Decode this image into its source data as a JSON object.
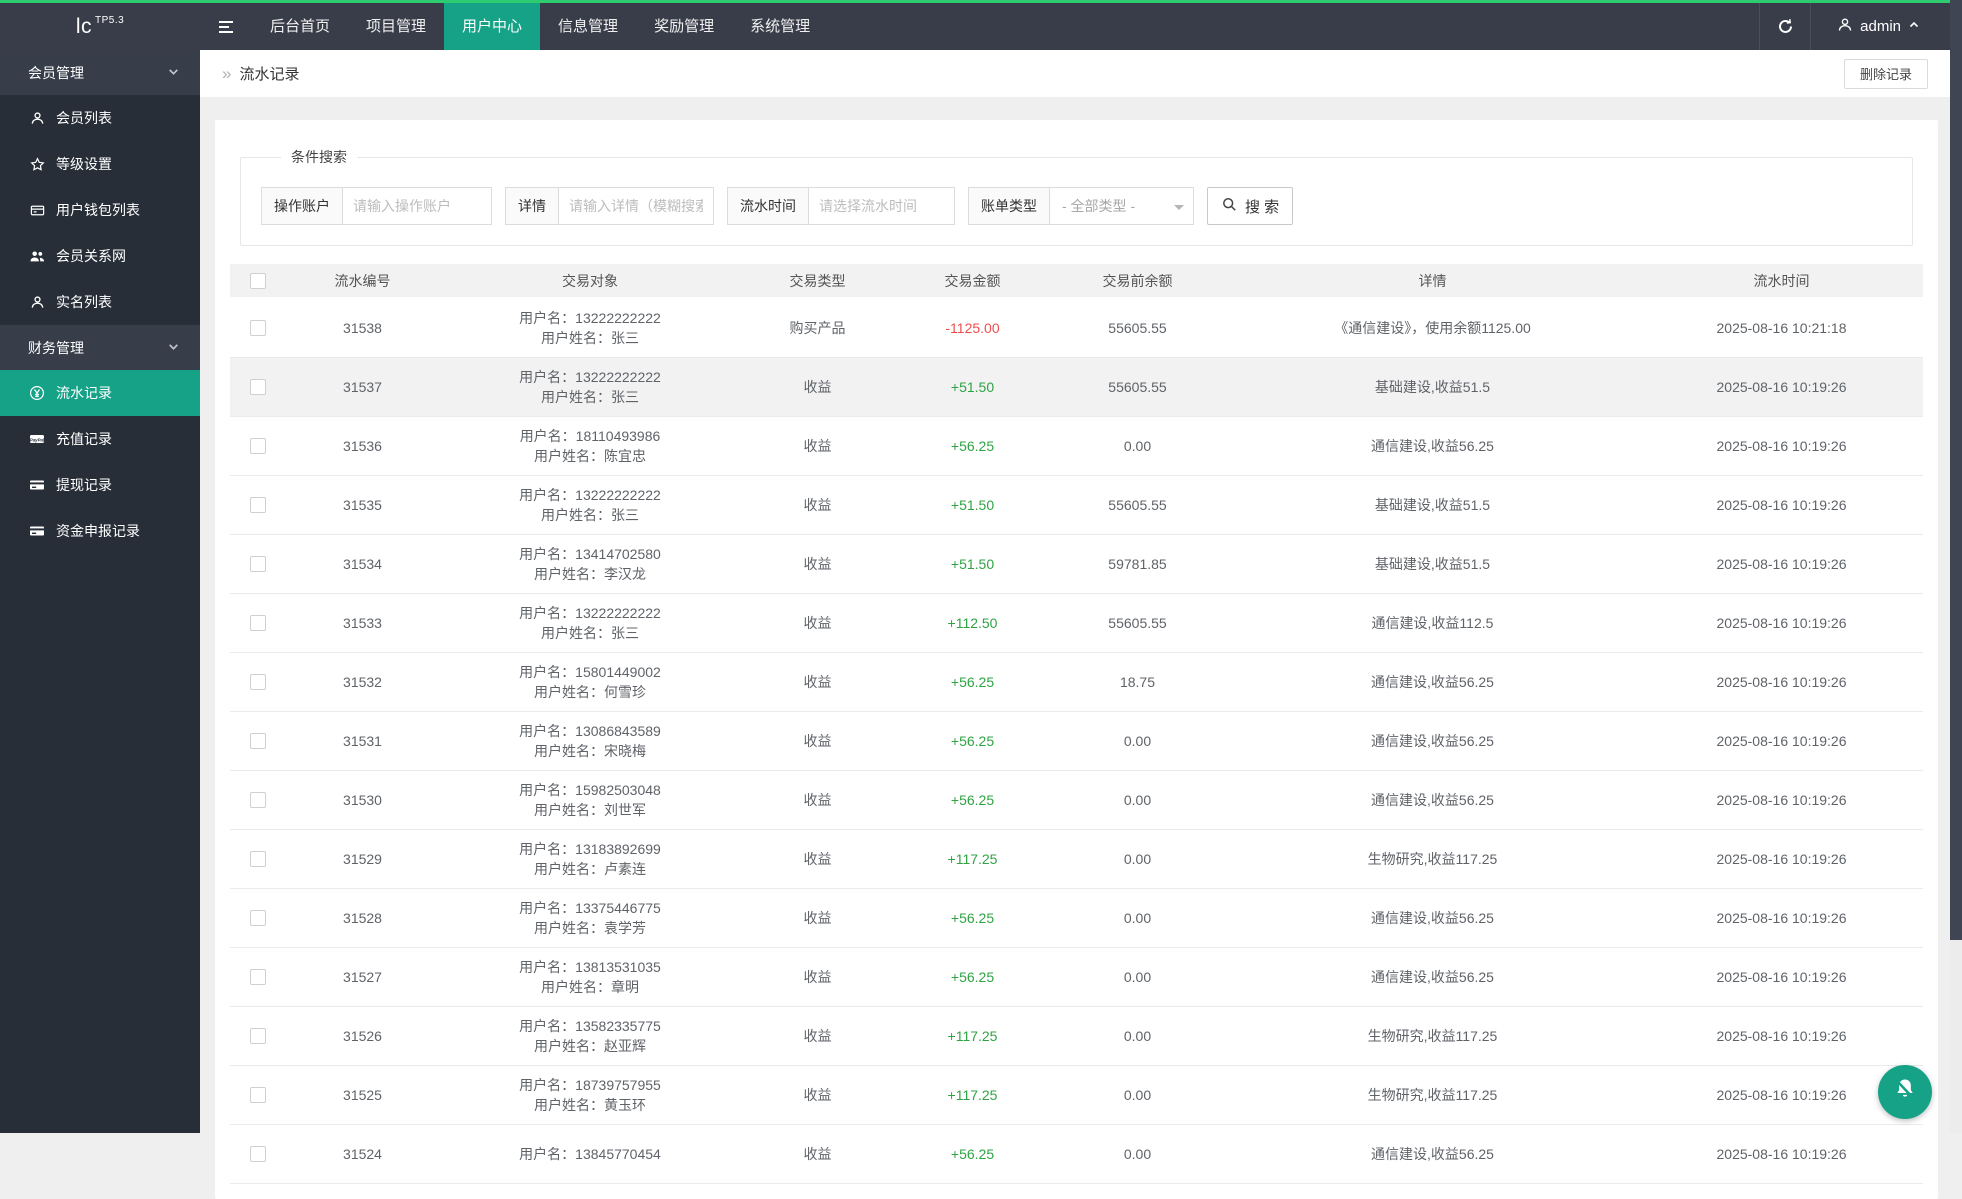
{
  "colors": {
    "accent": "#15A287",
    "top_line": "#2ECC71",
    "amount_positive": "#2FA344",
    "amount_negative": "#EE4E4E"
  },
  "topbar": {
    "logo_main": "lc",
    "logo_sup": "TP5.3",
    "tabs": [
      {
        "label": "后台首页",
        "active": false
      },
      {
        "label": "项目管理",
        "active": false
      },
      {
        "label": "用户中心",
        "active": true
      },
      {
        "label": "信息管理",
        "active": false
      },
      {
        "label": "奖励管理",
        "active": false
      },
      {
        "label": "系统管理",
        "active": false
      }
    ],
    "user": "admin"
  },
  "sidebar": {
    "sections": [
      {
        "label": "会员管理",
        "items": [
          {
            "label": "会员列表",
            "icon": "user-icon",
            "active": false
          },
          {
            "label": "等级设置",
            "icon": "star-icon",
            "active": false
          },
          {
            "label": "用户钱包列表",
            "icon": "wallet-icon",
            "active": false
          },
          {
            "label": "会员关系网",
            "icon": "users-icon",
            "active": false
          },
          {
            "label": "实名列表",
            "icon": "user-icon",
            "active": false
          }
        ]
      },
      {
        "label": "财务管理",
        "items": [
          {
            "label": "流水记录",
            "icon": "yen-circle-icon",
            "active": true
          },
          {
            "label": "充值记录",
            "icon": "paypal-icon",
            "active": false
          },
          {
            "label": "提现记录",
            "icon": "card-icon",
            "active": false
          },
          {
            "label": "资金申报记录",
            "icon": "card-icon",
            "active": false
          }
        ]
      }
    ]
  },
  "breadcrumb": {
    "title": "流水记录",
    "delete_button": "删除记录"
  },
  "search": {
    "legend": "条件搜索",
    "fields": [
      {
        "name": "operator-account",
        "type": "input",
        "label": "操作账户",
        "placeholder": "请输入操作账户"
      },
      {
        "name": "detail",
        "type": "input",
        "label": "详情",
        "placeholder": "请输入详情（模糊搜索）"
      },
      {
        "name": "flow-time",
        "type": "input",
        "label": "流水时间",
        "placeholder": "请选择流水时间"
      },
      {
        "name": "bill-type",
        "type": "select",
        "label": "账单类型",
        "value": "- 全部类型 -"
      }
    ],
    "button_label": "搜 索"
  },
  "table": {
    "headers": [
      "流水编号",
      "交易对象",
      "交易类型",
      "交易金额",
      "交易前余额",
      "详情",
      "流水时间"
    ],
    "rows": [
      {
        "id": "31538",
        "user_line1": "用户名：13222222222",
        "user_line2": "用户姓名：张三",
        "type": "购买产品",
        "amount": "-1125.00",
        "direction": "neg",
        "balance": "55605.55",
        "detail": "《通信建设》，使用余额1125.00",
        "time": "2025-08-16 10:21:18",
        "highlighted": false
      },
      {
        "id": "31537",
        "user_line1": "用户名：13222222222",
        "user_line2": "用户姓名：张三",
        "type": "收益",
        "amount": "+51.50",
        "direction": "pos",
        "balance": "55605.55",
        "detail": "基础建设,收益51.5",
        "time": "2025-08-16 10:19:26",
        "highlighted": true
      },
      {
        "id": "31536",
        "user_line1": "用户名：18110493986",
        "user_line2": "用户姓名：陈宜忠",
        "type": "收益",
        "amount": "+56.25",
        "direction": "pos",
        "balance": "0.00",
        "detail": "通信建设,收益56.25",
        "time": "2025-08-16 10:19:26",
        "highlighted": false
      },
      {
        "id": "31535",
        "user_line1": "用户名：13222222222",
        "user_line2": "用户姓名：张三",
        "type": "收益",
        "amount": "+51.50",
        "direction": "pos",
        "balance": "55605.55",
        "detail": "基础建设,收益51.5",
        "time": "2025-08-16 10:19:26",
        "highlighted": false
      },
      {
        "id": "31534",
        "user_line1": "用户名：13414702580",
        "user_line2": "用户姓名：李汉龙",
        "type": "收益",
        "amount": "+51.50",
        "direction": "pos",
        "balance": "59781.85",
        "detail": "基础建设,收益51.5",
        "time": "2025-08-16 10:19:26",
        "highlighted": false
      },
      {
        "id": "31533",
        "user_line1": "用户名：13222222222",
        "user_line2": "用户姓名：张三",
        "type": "收益",
        "amount": "+112.50",
        "direction": "pos",
        "balance": "55605.55",
        "detail": "通信建设,收益112.5",
        "time": "2025-08-16 10:19:26",
        "highlighted": false
      },
      {
        "id": "31532",
        "user_line1": "用户名：15801449002",
        "user_line2": "用户姓名：何雪珍",
        "type": "收益",
        "amount": "+56.25",
        "direction": "pos",
        "balance": "18.75",
        "detail": "通信建设,收益56.25",
        "time": "2025-08-16 10:19:26",
        "highlighted": false
      },
      {
        "id": "31531",
        "user_line1": "用户名：13086843589",
        "user_line2": "用户姓名：宋晓梅",
        "type": "收益",
        "amount": "+56.25",
        "direction": "pos",
        "balance": "0.00",
        "detail": "通信建设,收益56.25",
        "time": "2025-08-16 10:19:26",
        "highlighted": false
      },
      {
        "id": "31530",
        "user_line1": "用户名：15982503048",
        "user_line2": "用户姓名：刘世军",
        "type": "收益",
        "amount": "+56.25",
        "direction": "pos",
        "balance": "0.00",
        "detail": "通信建设,收益56.25",
        "time": "2025-08-16 10:19:26",
        "highlighted": false
      },
      {
        "id": "31529",
        "user_line1": "用户名：13183892699",
        "user_line2": "用户姓名：卢素连",
        "type": "收益",
        "amount": "+117.25",
        "direction": "pos",
        "balance": "0.00",
        "detail": "生物研究,收益117.25",
        "time": "2025-08-16 10:19:26",
        "highlighted": false
      },
      {
        "id": "31528",
        "user_line1": "用户名：13375446775",
        "user_line2": "用户姓名：袁学芳",
        "type": "收益",
        "amount": "+56.25",
        "direction": "pos",
        "balance": "0.00",
        "detail": "通信建设,收益56.25",
        "time": "2025-08-16 10:19:26",
        "highlighted": false
      },
      {
        "id": "31527",
        "user_line1": "用户名：13813531035",
        "user_line2": "用户姓名：章明",
        "type": "收益",
        "amount": "+56.25",
        "direction": "pos",
        "balance": "0.00",
        "detail": "通信建设,收益56.25",
        "time": "2025-08-16 10:19:26",
        "highlighted": false
      },
      {
        "id": "31526",
        "user_line1": "用户名：13582335775",
        "user_line2": "用户姓名：赵亚辉",
        "type": "收益",
        "amount": "+117.25",
        "direction": "pos",
        "balance": "0.00",
        "detail": "生物研究,收益117.25",
        "time": "2025-08-16 10:19:26",
        "highlighted": false
      },
      {
        "id": "31525",
        "user_line1": "用户名：18739757955",
        "user_line2": "用户姓名：黄玉环",
        "type": "收益",
        "amount": "+117.25",
        "direction": "pos",
        "balance": "0.00",
        "detail": "生物研究,收益117.25",
        "time": "2025-08-16 10:19:26",
        "highlighted": false
      },
      {
        "id": "31524",
        "user_line1": "用户名：13845770454",
        "user_line2": "",
        "type": "收益",
        "amount": "+56.25",
        "direction": "pos",
        "balance": "0.00",
        "detail": "通信建设,收益56.25",
        "time": "2025-08-16 10:19:26",
        "highlighted": false
      }
    ]
  }
}
